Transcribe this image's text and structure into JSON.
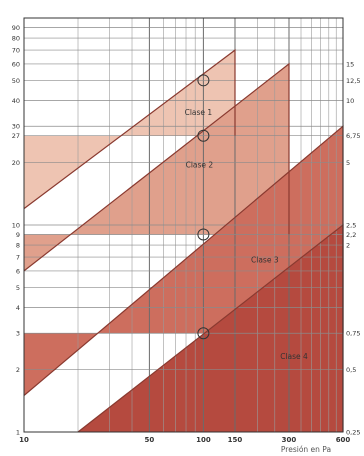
{
  "chart_data": {
    "type": "area",
    "xscale": "log",
    "yscale": "log",
    "xlim": [
      10,
      600
    ],
    "ylim": [
      1,
      100
    ],
    "xlabel": "Presión en Pa",
    "ylabel": "",
    "grid": true,
    "x_ticks": [
      {
        "value": 10,
        "label": "10"
      },
      {
        "value": 50,
        "label": "50"
      },
      {
        "value": 100,
        "label": "100"
      },
      {
        "value": 150,
        "label": "150"
      },
      {
        "value": 300,
        "label": "300"
      },
      {
        "value": 600,
        "label": "600"
      }
    ],
    "y_ticks_left": [
      {
        "value": 1,
        "label": "1"
      },
      {
        "value": 2,
        "label": "2"
      },
      {
        "value": 3,
        "label": "3"
      },
      {
        "value": 4,
        "label": "4"
      },
      {
        "value": 5,
        "label": "5"
      },
      {
        "value": 6,
        "label": "6"
      },
      {
        "value": 7,
        "label": "7"
      },
      {
        "value": 8,
        "label": "8"
      },
      {
        "value": 9,
        "label": "9"
      },
      {
        "value": 10,
        "label": "10"
      },
      {
        "value": 20,
        "label": "20"
      },
      {
        "value": 27,
        "label": "27"
      },
      {
        "value": 30,
        "label": "30"
      },
      {
        "value": 40,
        "label": "40"
      },
      {
        "value": 50,
        "label": "50"
      },
      {
        "value": 60,
        "label": "60"
      },
      {
        "value": 70,
        "label": "70"
      },
      {
        "value": 80,
        "label": "80"
      },
      {
        "value": 90,
        "label": "90"
      }
    ],
    "y_ticks_right": [
      {
        "value": 1,
        "label": "0,25"
      },
      {
        "value": 2,
        "label": "0,5"
      },
      {
        "value": 3,
        "label": "0,75"
      },
      {
        "value": 8,
        "label": "2"
      },
      {
        "value": 9,
        "label": "2,2"
      },
      {
        "value": 10,
        "label": "2,5"
      },
      {
        "value": 20,
        "label": "5"
      },
      {
        "value": 27,
        "label": "6,75"
      },
      {
        "value": 40,
        "label": "10"
      },
      {
        "value": 50,
        "label": "12,5"
      },
      {
        "value": 60,
        "label": "15"
      }
    ],
    "series": [
      {
        "name": "Clase 1",
        "color": "#eec4b2",
        "points": [
          [
            10,
            12
          ],
          [
            150,
            70
          ],
          [
            150,
            27
          ],
          [
            100,
            27
          ],
          [
            10,
            27
          ]
        ],
        "marker": [
          100,
          50
        ]
      },
      {
        "name": "Clase 2",
        "color": "#e0a08c",
        "points": [
          [
            10,
            6
          ],
          [
            300,
            60
          ],
          [
            300,
            9
          ],
          [
            100,
            9
          ],
          [
            10,
            9
          ]
        ],
        "marker": [
          100,
          27
        ]
      },
      {
        "name": "Clase 3",
        "color": "#cd6e5e",
        "points": [
          [
            10,
            1.5
          ],
          [
            600,
            30
          ],
          [
            600,
            3
          ],
          [
            100,
            3
          ],
          [
            10,
            3
          ]
        ],
        "marker": [
          100,
          9
        ]
      },
      {
        "name": "Clase 4",
        "color": "#b54a3f",
        "points": [
          [
            20,
            1
          ],
          [
            600,
            10
          ],
          [
            600,
            1
          ]
        ],
        "marker": [
          100,
          3
        ]
      }
    ]
  }
}
